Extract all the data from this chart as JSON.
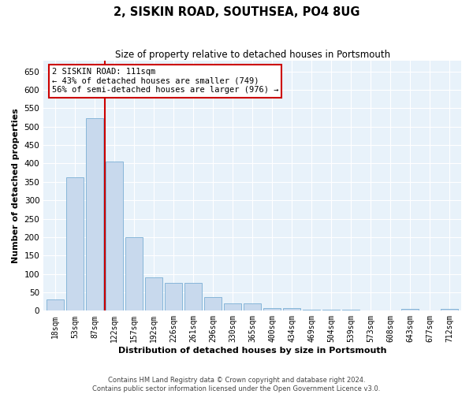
{
  "title_line1": "2, SISKIN ROAD, SOUTHSEA, PO4 8UG",
  "title_line2": "Size of property relative to detached houses in Portsmouth",
  "xlabel": "Distribution of detached houses by size in Portsmouth",
  "ylabel": "Number of detached properties",
  "bar_color": "#c8d9ed",
  "bar_edge_color": "#7aafd4",
  "background_color": "#e8f2fa",
  "grid_color": "#ffffff",
  "vline_color": "#cc0000",
  "annotation_text": "2 SISKIN ROAD: 111sqm\n← 43% of detached houses are smaller (749)\n56% of semi-detached houses are larger (976) →",
  "annotation_box_color": "#ffffff",
  "annotation_box_edge": "#cc0000",
  "footer_line1": "Contains HM Land Registry data © Crown copyright and database right 2024.",
  "footer_line2": "Contains public sector information licensed under the Open Government Licence v3.0.",
  "categories": [
    "18sqm",
    "53sqm",
    "87sqm",
    "122sqm",
    "157sqm",
    "192sqm",
    "226sqm",
    "261sqm",
    "296sqm",
    "330sqm",
    "365sqm",
    "400sqm",
    "434sqm",
    "469sqm",
    "504sqm",
    "539sqm",
    "573sqm",
    "608sqm",
    "643sqm",
    "677sqm",
    "712sqm"
  ],
  "values": [
    30,
    362,
    522,
    405,
    200,
    90,
    75,
    75,
    37,
    20,
    20,
    8,
    8,
    2,
    2,
    2,
    0,
    0,
    5,
    0,
    5
  ],
  "ylim": [
    0,
    680
  ],
  "yticks": [
    0,
    50,
    100,
    150,
    200,
    250,
    300,
    350,
    400,
    450,
    500,
    550,
    600,
    650
  ],
  "vline_x": 2.5,
  "figwidth": 6.0,
  "figheight": 5.0,
  "dpi": 100
}
